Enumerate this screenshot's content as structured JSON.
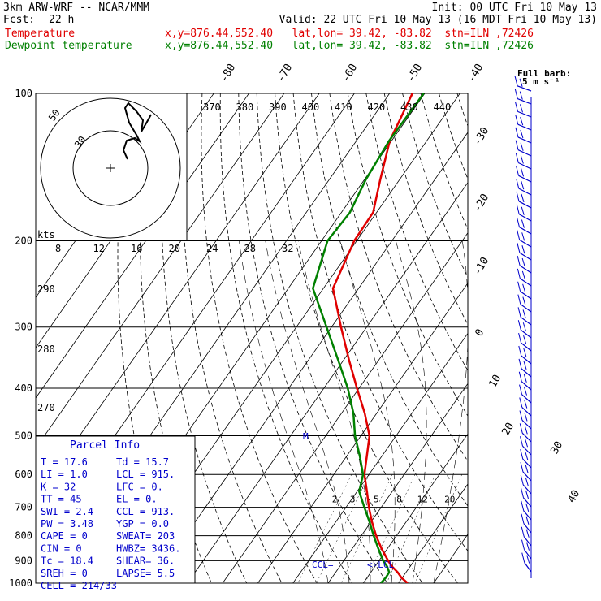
{
  "header": {
    "model": "3km ARW-WRF -- NCAR/MMM",
    "init": "Init: 00 UTC Fri 10 May 13",
    "fcst_label": "Fcst:",
    "fcst_value": "22 h",
    "valid": "Valid: 22 UTC Fri 10 May 13 (16 MDT Fri 10 May 13)",
    "temp_label": "Temperature",
    "temp_loc": "x,y=876.44,552.40   lat,lon= 39.42, -83.82  stn=ILN ,72426",
    "dew_label": "Dewpoint temperature",
    "dew_loc": "x,y=876.44,552.40   lat,lon= 39.42, -83.82  stn=ILN ,72426"
  },
  "colors": {
    "temperature": "#e00000",
    "dewpoint": "#008000",
    "parcel_text": "#0000cc",
    "barbs": "#0000cc"
  },
  "chart_data": {
    "type": "line",
    "title": "",
    "pressure_levels": [
      "100",
      "200",
      "300",
      "400",
      "500",
      "600",
      "700",
      "800",
      "900",
      "1000"
    ],
    "pressure_values": [
      100,
      200,
      300,
      400,
      500,
      600,
      700,
      800,
      900,
      1000
    ],
    "isotherm_labels": [
      "-80",
      "-70",
      "-60",
      "-50",
      "-40",
      "-30",
      "-20",
      "-10",
      "0",
      "10",
      "20",
      "30",
      "40"
    ],
    "theta_labels": [
      "370",
      "380",
      "390",
      "400",
      "410",
      "420",
      "430",
      "440"
    ],
    "theta_low_labels": [
      "290",
      "280",
      "270"
    ],
    "mixing_ratio_labels": [
      "2",
      "3",
      "5",
      "8",
      "12",
      "20"
    ],
    "hodograph": {
      "unit_label": "kts",
      "rings": [
        "8",
        "12",
        "16",
        "20",
        "24",
        "28",
        "32"
      ],
      "ring_labels": [
        "50",
        "30"
      ]
    },
    "barb_legend": {
      "line1": "Full barb:",
      "line2": "5 m s⁻¹"
    },
    "series": [
      {
        "name": "Temperature",
        "color": "#e00000",
        "p": [
          1000,
          975,
          950,
          925,
          900,
          850,
          800,
          750,
          700,
          650,
          600,
          550,
          500,
          450,
          400,
          350,
          300,
          250,
          200,
          175,
          150,
          125,
          100
        ],
        "values": [
          22.6,
          19.8,
          17.6,
          14.9,
          12.6,
          8.3,
          4.2,
          0.3,
          -3.5,
          -7.2,
          -11.3,
          -14.3,
          -17.6,
          -23.4,
          -30.6,
          -38.5,
          -47.3,
          -57.3,
          -60.7,
          -61.0,
          -65.5,
          -70.5,
          -73.5
        ]
      },
      {
        "name": "Dewpoint temperature",
        "color": "#008000",
        "p": [
          1000,
          975,
          950,
          925,
          900,
          850,
          800,
          750,
          700,
          650,
          600,
          550,
          500,
          450,
          400,
          350,
          300,
          250,
          200,
          175,
          150,
          125,
          100
        ],
        "values": [
          15.0,
          15.3,
          15.2,
          13.5,
          11.2,
          7.4,
          3.5,
          -0.4,
          -4.8,
          -9.4,
          -11.7,
          -16.3,
          -21.7,
          -26.6,
          -33.2,
          -41.6,
          -51.4,
          -63.0,
          -68.3,
          -67.6,
          -69.6,
          -70.7,
          -70.3
        ]
      }
    ],
    "markers": {
      "ccl": "CCL=",
      "lcl": "<-LCL",
      "el": "M"
    },
    "parcel_info": {
      "title": "Parcel Info",
      "rows": [
        [
          "T  =    17.6",
          "Td =  15.7"
        ],
        [
          "LI =     1.0",
          "LCL =  915."
        ],
        [
          "K  =      32",
          "LFC =    0."
        ],
        [
          "TT =      45",
          "EL  =    0."
        ],
        [
          "SWI =    2.4",
          "CCL =  913."
        ],
        [
          "PW =    3.48",
          "YGP =   0.0"
        ],
        [
          "CAPE =     0",
          "SWEAT=  203"
        ],
        [
          "CIN =      0",
          "HWBZ= 3436."
        ],
        [
          "Tc =    18.4",
          "SHEAR=  36."
        ],
        [
          "SREH =     0",
          "LAPSE=  5.5"
        ],
        [
          "CELL = 214/33",
          ""
        ]
      ]
    }
  }
}
